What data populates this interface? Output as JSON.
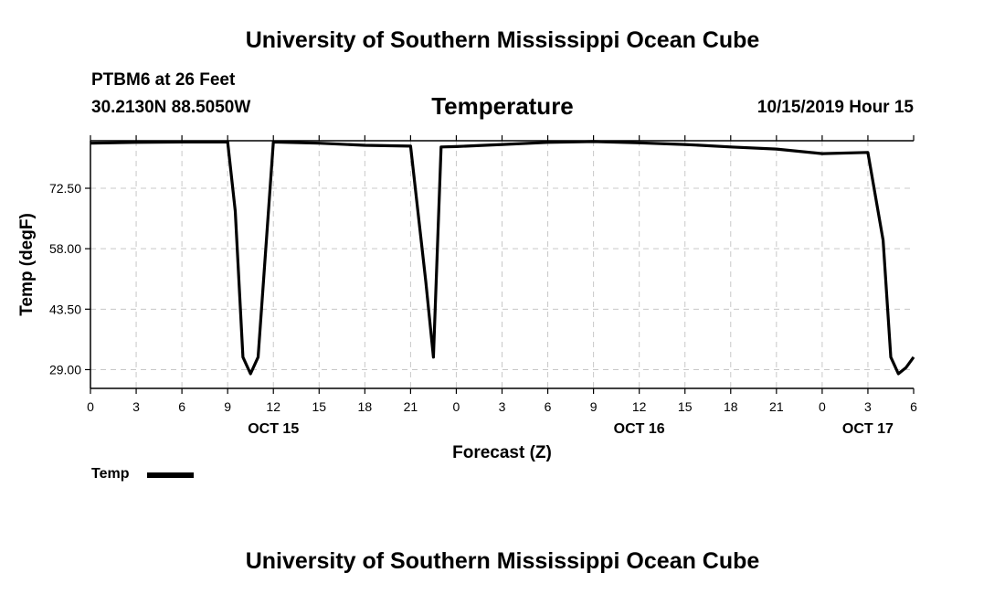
{
  "header": {
    "title": "University of Southern Mississippi Ocean Cube",
    "station": "PTBM6 at 26 Feet",
    "coords": "30.2130N 88.5050W",
    "chart_title": "Temperature",
    "datetime": "10/15/2019 Hour 15"
  },
  "footer": {
    "title": "University of Southern Mississippi Ocean Cube"
  },
  "legend": {
    "label": "Temp"
  },
  "chart_data": {
    "type": "line",
    "title": "Temperature",
    "xlabel": "Forecast (Z)",
    "ylabel": "Temp (degF)",
    "ylim": [
      24.5,
      83.9
    ],
    "xlim": [
      0,
      54
    ],
    "yticks": [
      "72.50",
      "58.00",
      "43.50",
      "29.00"
    ],
    "ytick_values": [
      72.5,
      58.0,
      43.5,
      29.0
    ],
    "xticks": [
      "0",
      "3",
      "6",
      "9",
      "12",
      "15",
      "18",
      "21",
      "0",
      "3",
      "6",
      "9",
      "12",
      "15",
      "18",
      "21",
      "0",
      "3",
      "6"
    ],
    "date_labels": [
      {
        "label": "OCT 15",
        "x": 12
      },
      {
        "label": "OCT 16",
        "x": 36
      },
      {
        "label": "OCT 17",
        "x": 51
      }
    ],
    "grid": true,
    "legend_position": "bottom-left",
    "line_color": "#000000",
    "series": [
      {
        "name": "Temp",
        "x": [
          0,
          3,
          6,
          9,
          9.5,
          10,
          10.5,
          11,
          12,
          15,
          18,
          21,
          22,
          22.5,
          23,
          24,
          27,
          30,
          33,
          36,
          39,
          42,
          45,
          48,
          51,
          52,
          52.5,
          53,
          53.5,
          54
        ],
        "y": [
          83.3,
          83.5,
          83.6,
          83.6,
          67.0,
          32.0,
          28.0,
          32.0,
          83.6,
          83.3,
          82.8,
          82.6,
          50.0,
          32.0,
          82.4,
          82.5,
          83.0,
          83.5,
          83.7,
          83.4,
          83.0,
          82.4,
          81.9,
          80.8,
          81.1,
          60.0,
          32.0,
          28.0,
          29.5,
          32.0
        ]
      }
    ]
  }
}
